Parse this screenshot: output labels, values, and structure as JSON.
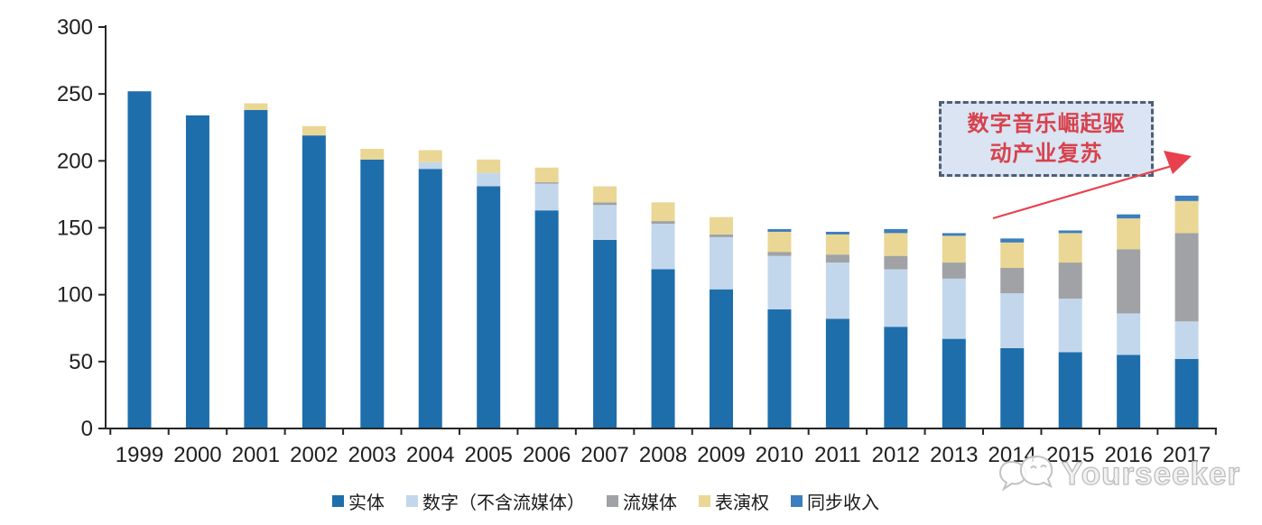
{
  "chart_data": {
    "type": "bar",
    "stacked": true,
    "title": "",
    "xlabel": "",
    "ylabel": "",
    "categories": [
      "1999",
      "2000",
      "2001",
      "2002",
      "2003",
      "2004",
      "2005",
      "2006",
      "2007",
      "2008",
      "2009",
      "2010",
      "2011",
      "2012",
      "2013",
      "2014",
      "2015",
      "2016",
      "2017"
    ],
    "series": [
      {
        "name": "实体",
        "color": "#1E6EAC",
        "values": [
          252,
          234,
          238,
          219,
          201,
          194,
          181,
          163,
          141,
          119,
          104,
          89,
          82,
          76,
          67,
          60,
          57,
          55,
          52
        ]
      },
      {
        "name": "数字（不含流媒体）",
        "color": "#C3D7EC",
        "values": [
          0,
          0,
          0,
          0,
          0,
          5,
          10,
          20,
          26,
          34,
          39,
          40,
          42,
          43,
          45,
          41,
          40,
          31,
          28
        ]
      },
      {
        "name": "流媒体",
        "color": "#A0A2A5",
        "values": [
          0,
          0,
          0,
          0,
          0,
          0,
          0,
          1,
          2,
          2,
          2,
          3,
          6,
          10,
          12,
          19,
          27,
          48,
          66
        ]
      },
      {
        "name": "表演权",
        "color": "#EAD795",
        "values": [
          0,
          0,
          5,
          7,
          8,
          9,
          10,
          11,
          12,
          14,
          13,
          15,
          15,
          17,
          20,
          19,
          22,
          23,
          24
        ]
      },
      {
        "name": "同步收入",
        "color": "#3C7EBE",
        "values": [
          0,
          0,
          0,
          0,
          0,
          0,
          0,
          0,
          0,
          0,
          0,
          2,
          2,
          3,
          2,
          3,
          2,
          3,
          4
        ]
      }
    ],
    "totals": [
      252,
      234,
      243,
      226,
      209,
      208,
      201,
      195,
      181,
      169,
      158,
      149,
      147,
      149,
      146,
      142,
      148,
      160,
      174
    ],
    "ylim": [
      0,
      300
    ],
    "yticks": [
      0,
      50,
      100,
      150,
      200,
      250,
      300
    ],
    "grid": false,
    "legend_position": "bottom",
    "axis_color": "#262626",
    "label_color": "#1f1f1f"
  },
  "annotation": {
    "line1": "数字音乐崛起驱",
    "line2": "动产业复苏",
    "text_color": "#D8414C",
    "box_fill": "#DAE4F2",
    "box_border_color": "#4E5F75",
    "arrow_color": "#E8414D"
  },
  "watermark": {
    "text": "Yourseeker",
    "logo": "chat-bubbles-icon",
    "color": "#C6C6C6"
  }
}
